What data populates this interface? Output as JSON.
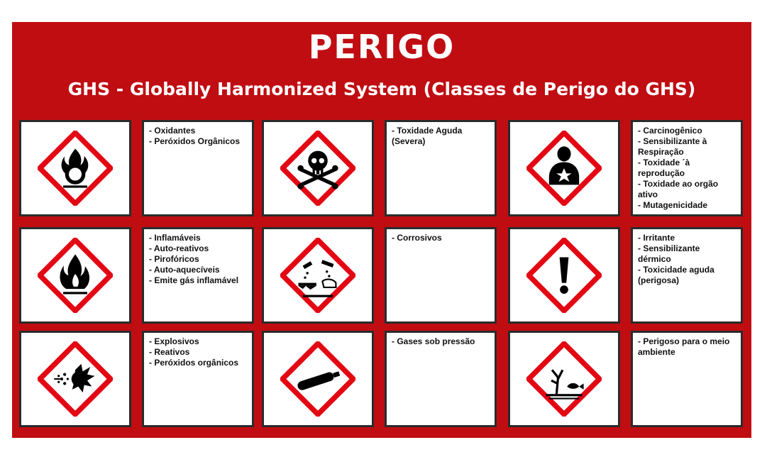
{
  "header": {
    "title": "PERIGO",
    "subtitle": "GHS - Globally Harmonized System (Classes de Perigo do GHS)"
  },
  "colors": {
    "background": "#c00d12",
    "pictogram_border": "#e30613",
    "symbol": "#000000"
  },
  "hazards": [
    {
      "icon": "flame-over-circle-icon",
      "lines": [
        "- Oxidantes",
        "- Peróxidos Orgânicos"
      ]
    },
    {
      "icon": "skull-crossbones-icon",
      "lines": [
        "- Toxidade Aguda",
        "(Severa)"
      ]
    },
    {
      "icon": "health-hazard-icon",
      "lines": [
        "- Carcinogênico",
        "- Sensibilizante à",
        "Respiração",
        "- Toxidade ´à",
        "reprodução",
        "- Toxidade ao orgão",
        "ativo",
        "- Mutagenicidade"
      ]
    },
    {
      "icon": "flame-icon",
      "lines": [
        "- Inflamáveis",
        "- Auto-reativos",
        "- Pirofóricos",
        "- Auto-aquecíveis",
        "- Emite gás inflamável"
      ]
    },
    {
      "icon": "corrosion-icon",
      "lines": [
        "- Corrosivos"
      ]
    },
    {
      "icon": "exclamation-mark-icon",
      "lines": [
        "- Irritante",
        "- Sensibilizante",
        "dérmico",
        "- Toxicidade aguda",
        "(perigosa)"
      ]
    },
    {
      "icon": "exploding-bomb-icon",
      "lines": [
        "- Explosivos",
        "- Reativos",
        "- Peróxidos orgânicos"
      ]
    },
    {
      "icon": "gas-cylinder-icon",
      "lines": [
        "- Gases sob pressão"
      ]
    },
    {
      "icon": "environment-icon",
      "lines": [
        "- Perigoso para o meio",
        "ambiente"
      ]
    }
  ]
}
